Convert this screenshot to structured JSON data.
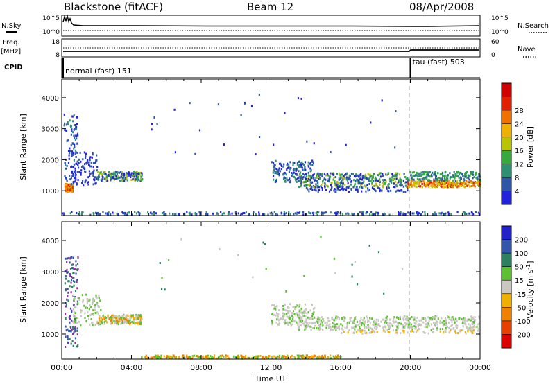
{
  "header": {
    "station": "Blackstone (fitACF)",
    "beam": "Beam 12",
    "date": "08/Apr/2008"
  },
  "left_labels": {
    "nsky": "N.Sky",
    "freq": "Freq.",
    "freq_unit": "[MHz]",
    "cpid": "CPID"
  },
  "right_labels": {
    "nsearch": "N.Search",
    "nave": "Nave"
  },
  "noise_panel": {
    "left_ticks": [
      "10^5",
      "10^0"
    ],
    "right_ticks": [
      "10^5",
      "10^0"
    ]
  },
  "freq_panel": {
    "left_ticks": [
      "18",
      "8"
    ],
    "right_ticks": [
      "60",
      "0"
    ]
  },
  "cpid_panel": {
    "programs": [
      {
        "label": "normal (fast) 151",
        "start_hour": 0
      },
      {
        "label": "tau (fast) 503",
        "start_hour": 20
      }
    ]
  },
  "colors": {
    "power": [
      "#2222dd",
      "#2f55a8",
      "#2f8f72",
      "#36a83c",
      "#b8c400",
      "#f0b000",
      "#f07000",
      "#e02000",
      "#d00000"
    ],
    "velocity": [
      "#2222cc",
      "#3355aa",
      "#2c8060",
      "#5cc030",
      "#c8c8c0",
      "#f0b000",
      "#f08000",
      "#e84000",
      "#dd0000"
    ]
  },
  "chart_data": [
    {
      "type": "heatmap",
      "title": "",
      "xlabel": "",
      "ylabel": "Slant Range [km]",
      "x_range_hours": [
        0,
        24
      ],
      "ylim": [
        200,
        4600
      ],
      "y_ticks": [
        "1000",
        "2000",
        "3000",
        "4000"
      ],
      "grid": false,
      "colorbar": {
        "label": "Power [dB]",
        "ticks": [
          "4",
          "8",
          "12",
          "16",
          "20",
          "24",
          "28"
        ]
      }
    },
    {
      "type": "heatmap",
      "title": "",
      "xlabel": "Time UT",
      "ylabel": "Slant Range [km]",
      "x_range_hours": [
        0,
        24
      ],
      "ylim": [
        200,
        4600
      ],
      "x_ticks": [
        "00:00",
        "04:00",
        "08:00",
        "12:00",
        "16:00",
        "20:00",
        "00:00"
      ],
      "y_ticks": [
        "1000",
        "2000",
        "3000",
        "4000"
      ],
      "grid": false,
      "colorbar": {
        "label": "Velocity [m s",
        "label_sup": "-1",
        "label_end": "]",
        "ticks": [
          "200",
          "100",
          "50",
          "15",
          "-15",
          "-50",
          "-100",
          "-200"
        ]
      }
    }
  ]
}
